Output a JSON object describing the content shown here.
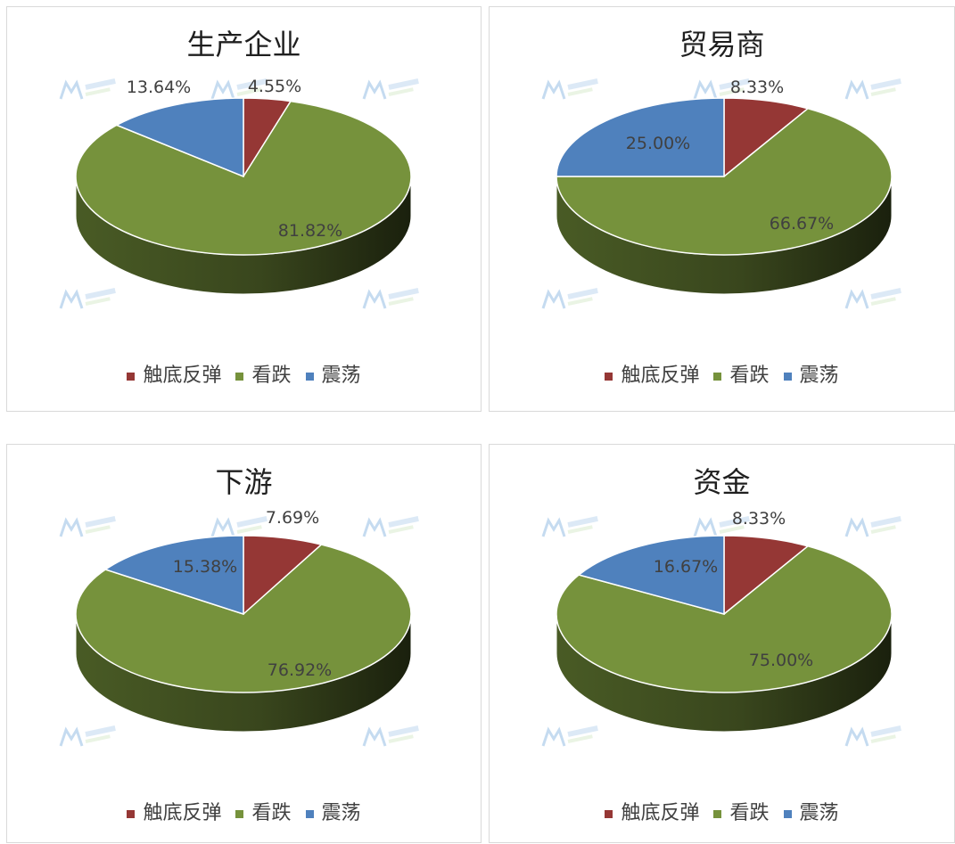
{
  "colors": {
    "触底反弹": "#953735",
    "看跌": "#76923c",
    "震荡": "#4f81bd"
  },
  "watermark_text": "我的农产品 Mysteel.com",
  "chart_data": [
    {
      "type": "pie",
      "title": "生产企业",
      "categories": [
        "触底反弹",
        "看跌",
        "震荡"
      ],
      "values": [
        4.55,
        81.82,
        13.64
      ],
      "labels": [
        "4.55%",
        "81.82%",
        "13.64%"
      ],
      "legend_position": "bottom"
    },
    {
      "type": "pie",
      "title": "贸易商",
      "categories": [
        "触底反弹",
        "看跌",
        "震荡"
      ],
      "values": [
        8.33,
        66.67,
        25.0
      ],
      "labels": [
        "8.33%",
        "66.67%",
        "25.00%"
      ],
      "legend_position": "bottom"
    },
    {
      "type": "pie",
      "title": "下游",
      "categories": [
        "触底反弹",
        "看跌",
        "震荡"
      ],
      "values": [
        7.69,
        76.92,
        15.38
      ],
      "labels": [
        "7.69%",
        "76.92%",
        "15.38%"
      ],
      "legend_position": "bottom"
    },
    {
      "type": "pie",
      "title": "资金",
      "categories": [
        "触底反弹",
        "看跌",
        "震荡"
      ],
      "values": [
        8.33,
        75.0,
        16.67
      ],
      "labels": [
        "8.33%",
        "75.00%",
        "16.67%"
      ],
      "legend_position": "bottom"
    }
  ]
}
